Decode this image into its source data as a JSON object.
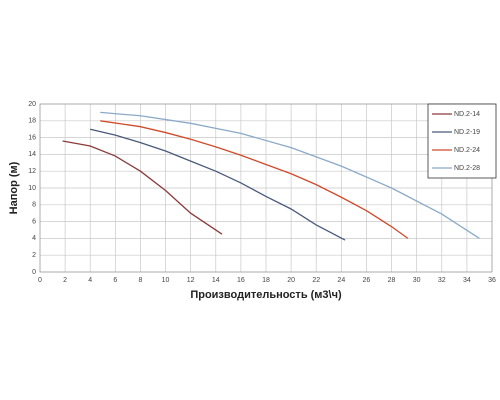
{
  "chart_data": {
    "type": "line",
    "x_label": "Производительность (м3\\ч)",
    "y_label": "Напор (м)",
    "xlim": [
      0,
      36
    ],
    "xticks": [
      0,
      2,
      4,
      6,
      8,
      10,
      12,
      14,
      16,
      18,
      20,
      22,
      24,
      26,
      28,
      30,
      32,
      34,
      36
    ],
    "ylim": [
      0,
      20
    ],
    "yticks": [
      0,
      2,
      4,
      6,
      8,
      10,
      12,
      14,
      16,
      18,
      20
    ],
    "grid": true,
    "legend": "upper right",
    "series": [
      {
        "name": "ND.2-14",
        "color": "#8b3a3a",
        "x": [
          1.8,
          4,
          6,
          8,
          10,
          12,
          14.5
        ],
        "values": [
          15.6,
          15,
          13.8,
          12,
          9.7,
          7,
          4.5
        ]
      },
      {
        "name": "ND.2-19",
        "color": "#4a5a7a",
        "x": [
          4,
          6,
          8,
          10,
          12,
          14,
          16,
          18,
          20,
          22,
          24.3
        ],
        "values": [
          17,
          16.3,
          15.4,
          14.4,
          13.2,
          12,
          10.6,
          9,
          7.5,
          5.6,
          3.8
        ]
      },
      {
        "name": "ND.2-24",
        "color": "#d04a2a",
        "x": [
          4.8,
          8,
          10,
          12,
          14,
          16,
          18,
          20,
          22,
          24,
          26,
          28,
          29.3
        ],
        "values": [
          18,
          17.3,
          16.6,
          15.8,
          14.9,
          13.9,
          12.8,
          11.7,
          10.4,
          8.9,
          7.3,
          5.4,
          4
        ]
      },
      {
        "name": "ND.2-28",
        "color": "#8aaac8",
        "x": [
          4.8,
          8,
          12,
          16,
          20,
          24,
          28,
          32,
          35
        ],
        "values": [
          19,
          18.6,
          17.7,
          16.5,
          14.8,
          12.6,
          10,
          6.9,
          4
        ]
      }
    ]
  }
}
